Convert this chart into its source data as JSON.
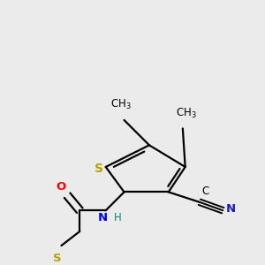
{
  "bg_color": "#ebebeb",
  "bond_color": "#000000",
  "bond_width": 1.6,
  "dbo": 0.012,
  "colors": {
    "S": "#b8a000",
    "N_amide": "#0000ff",
    "N_cyano": "#1a1acd",
    "O": "#ff0000",
    "C": "#000000",
    "H": "#008888"
  },
  "fs": 8.5
}
